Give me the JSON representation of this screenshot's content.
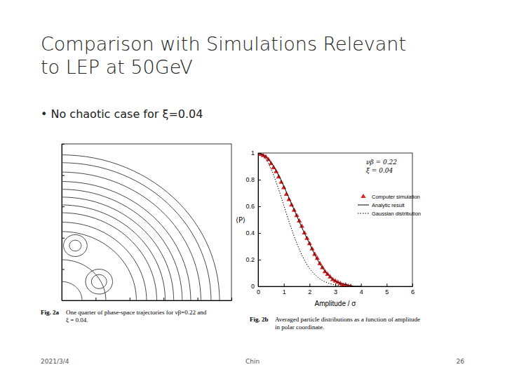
{
  "slide": {
    "title": [
      "Comparison with Simulations Relevant",
      "to LEP at 50GeV"
    ],
    "bullet": "• No chaotic case for ξ=0.04",
    "footer_date": "2021/3/4",
    "footer_author": "Chin",
    "page_number": "26"
  },
  "chart_data": [
    {
      "type": "phase_space",
      "caption_label": "Fig. 2a",
      "caption": [
        "One quarter of phase-space trajectories for νβ=0.22 and",
        "ξ = 0.04."
      ],
      "xlim": [
        0,
        10
      ],
      "ylim": [
        0,
        10
      ],
      "xticks": [
        0,
        2,
        4,
        6,
        8,
        10
      ],
      "yticks": [
        0,
        2,
        4,
        6,
        8,
        10
      ],
      "tick_labels": false,
      "color": "#333333",
      "values": [
        1.2,
        2.6,
        4.4,
        5.0,
        5.6,
        6.1,
        6.6,
        7.1,
        7.6,
        8.2,
        8.8,
        9.3
      ],
      "islands": [
        {
          "x": 2.2,
          "y": 1.2,
          "r": 0.8
        },
        {
          "x": 2.2,
          "y": 1.2,
          "r": 0.45
        },
        {
          "x": 0.8,
          "y": 3.5,
          "r": 0.7
        },
        {
          "x": 0.8,
          "y": 3.5,
          "r": 0.35
        }
      ]
    },
    {
      "type": "line",
      "caption_label": "Fig. 2b",
      "caption": [
        "Averaged particle distributions as a function of amplitude",
        "in polar coordinate."
      ],
      "x_label": "Amplitude / σ",
      "y_label": "⟨P⟩",
      "annotations": [
        "νβ = 0.22",
        "ξ = 0.04"
      ],
      "xlim": [
        0,
        6
      ],
      "ylim": [
        0,
        1
      ],
      "xticks": [
        0,
        1,
        2,
        3,
        4,
        5,
        6
      ],
      "yticks": [
        0,
        0.2,
        0.4,
        0.6,
        0.8,
        1
      ],
      "legend": "upper right",
      "series": [
        {
          "name": "Computer simulation",
          "type": "scatter",
          "marker": "triangle",
          "color": "#e02020",
          "x": [
            0,
            0.1,
            0.2,
            0.3,
            0.4,
            0.5,
            0.6,
            0.7,
            0.8,
            0.9,
            1.0,
            1.1,
            1.2,
            1.3,
            1.4,
            1.5,
            1.6,
            1.7,
            1.8,
            1.9,
            2.0,
            2.1,
            2.2,
            2.3,
            2.4,
            2.5,
            2.6,
            2.7,
            2.8,
            2.9,
            3.0,
            3.1,
            3.2,
            3.3,
            3.4,
            3.5,
            3.6
          ],
          "values": [
            1.0,
            0.99,
            0.98,
            0.97,
            0.95,
            0.92,
            0.89,
            0.86,
            0.82,
            0.78,
            0.74,
            0.69,
            0.65,
            0.61,
            0.57,
            0.53,
            0.49,
            0.45,
            0.4,
            0.36,
            0.32,
            0.28,
            0.24,
            0.21,
            0.17,
            0.14,
            0.11,
            0.09,
            0.07,
            0.05,
            0.04,
            0.03,
            0.02,
            0.01,
            0.01,
            0.0,
            0.0
          ]
        },
        {
          "name": "Analytic result",
          "type": "line",
          "line_style": "solid",
          "color": "#000000",
          "x": [
            0,
            0.25,
            0.5,
            0.75,
            1.0,
            1.25,
            1.5,
            1.75,
            2.0,
            2.25,
            2.5,
            2.75,
            3.0,
            3.25,
            3.5,
            3.75,
            4.0
          ],
          "values": [
            1.0,
            0.98,
            0.93,
            0.85,
            0.75,
            0.64,
            0.53,
            0.42,
            0.32,
            0.22,
            0.14,
            0.08,
            0.04,
            0.02,
            0.01,
            0.0,
            0.0
          ]
        },
        {
          "name": "Gaussian distribution",
          "type": "line",
          "line_style": "dotted",
          "color": "#000000",
          "x": [
            0,
            0.25,
            0.5,
            0.75,
            1.0,
            1.25,
            1.5,
            1.75,
            2.0,
            2.25,
            2.5,
            2.75,
            3.0,
            3.25,
            3.5,
            3.75,
            4.0
          ],
          "values": [
            1.0,
            0.969,
            0.882,
            0.755,
            0.607,
            0.458,
            0.325,
            0.216,
            0.135,
            0.08,
            0.044,
            0.023,
            0.011,
            0.005,
            0.002,
            0.001,
            0.0
          ]
        }
      ]
    }
  ]
}
